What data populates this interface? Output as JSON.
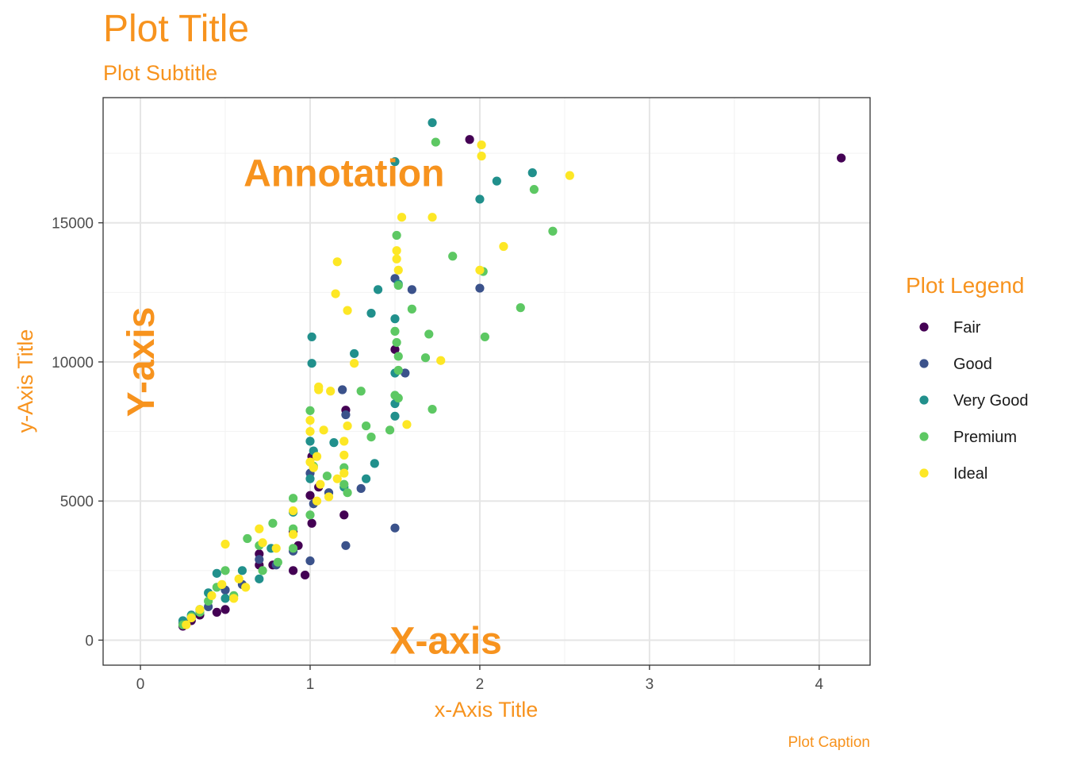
{
  "colors": {
    "accent": "#F7931E",
    "panel_border": "#333333",
    "grid_major": "#e5e5e5",
    "grid_minor": "#f2f2f2",
    "tick_text": "#4d4d4d",
    "legend_text": "#1a1a1a"
  },
  "chart_data": {
    "type": "scatter",
    "title": "Plot Title",
    "subtitle": "Plot Subtitle",
    "xlabel": "x-Axis Title",
    "ylabel": "y-Axis Title",
    "caption": "Plot Caption",
    "xlim": [
      -0.22,
      4.3
    ],
    "ylim": [
      -900,
      19500
    ],
    "x_ticks": [
      0,
      1,
      2,
      3,
      4
    ],
    "y_ticks": [
      0,
      5000,
      10000,
      15000
    ],
    "x_tick_labels": [
      "0",
      "1",
      "2",
      "3",
      "4"
    ],
    "y_tick_labels": [
      "0",
      "5000",
      "10000",
      "15000"
    ],
    "grid": true,
    "legend_title": "Plot Legend",
    "legend_position": "right",
    "annotations": [
      {
        "text": "Annotation",
        "x": 1.2,
        "y": 16800
      },
      {
        "text": "X-axis",
        "x": 1.8,
        "y": 0
      },
      {
        "text": "Y-axis",
        "x": 0,
        "y": 10000,
        "rotated": true
      }
    ],
    "series": [
      {
        "name": "Fair",
        "color": "#440154",
        "points": [
          [
            1.94,
            17995
          ],
          [
            4.13,
            17329
          ],
          [
            1.5,
            10447
          ],
          [
            1.21,
            8268
          ],
          [
            1.01,
            6600
          ],
          [
            1.0,
            5200
          ],
          [
            0.9,
            3900
          ],
          [
            0.93,
            3400
          ],
          [
            0.9,
            2500
          ],
          [
            0.97,
            2340
          ],
          [
            0.7,
            2700
          ],
          [
            0.78,
            2700
          ],
          [
            1.01,
            4200
          ],
          [
            1.2,
            4500
          ],
          [
            0.5,
            1100
          ],
          [
            0.3,
            700
          ],
          [
            0.35,
            900
          ],
          [
            0.45,
            1000
          ],
          [
            0.25,
            500
          ],
          [
            0.7,
            3100
          ],
          [
            1.05,
            5500
          ]
        ]
      },
      {
        "name": "Good",
        "color": "#3B528B",
        "points": [
          [
            1.19,
            9000
          ],
          [
            1.21,
            8100
          ],
          [
            1.56,
            9600
          ],
          [
            2.0,
            12650
          ],
          [
            1.6,
            12600
          ],
          [
            1.5,
            13000
          ],
          [
            1.21,
            3400
          ],
          [
            1.5,
            4030
          ],
          [
            1.0,
            2850
          ],
          [
            0.7,
            2900
          ],
          [
            0.8,
            2700
          ],
          [
            1.02,
            4900
          ],
          [
            1.11,
            5300
          ],
          [
            1.3,
            5450
          ],
          [
            0.9,
            3200
          ],
          [
            0.3,
            800
          ],
          [
            0.4,
            1200
          ],
          [
            0.5,
            1800
          ],
          [
            0.25,
            600
          ],
          [
            0.6,
            2000
          ],
          [
            1.0,
            6000
          ]
        ]
      },
      {
        "name": "Very Good",
        "color": "#21908C",
        "points": [
          [
            1.72,
            18600
          ],
          [
            2.31,
            16800
          ],
          [
            2.1,
            16500
          ],
          [
            1.5,
            17200
          ],
          [
            2.0,
            15850
          ],
          [
            1.4,
            12600
          ],
          [
            1.52,
            12800
          ],
          [
            1.36,
            11750
          ],
          [
            1.5,
            11550
          ],
          [
            1.01,
            10900
          ],
          [
            1.01,
            9950
          ],
          [
            1.26,
            10300
          ],
          [
            1.5,
            9600
          ],
          [
            1.5,
            8500
          ],
          [
            1.5,
            8050
          ],
          [
            1.0,
            7150
          ],
          [
            1.14,
            7100
          ],
          [
            1.38,
            6350
          ],
          [
            1.33,
            5800
          ],
          [
            1.0,
            5800
          ],
          [
            0.9,
            4600
          ],
          [
            0.77,
            3300
          ],
          [
            0.6,
            2500
          ],
          [
            0.4,
            1700
          ],
          [
            0.3,
            900
          ],
          [
            0.25,
            700
          ],
          [
            0.5,
            1500
          ],
          [
            0.7,
            2200
          ],
          [
            1.02,
            6800
          ],
          [
            1.2,
            5500
          ],
          [
            0.45,
            2400
          ],
          [
            0.35,
            1100
          ]
        ]
      },
      {
        "name": "Premium",
        "color": "#5DC863",
        "points": [
          [
            1.74,
            17900
          ],
          [
            2.32,
            16200
          ],
          [
            2.43,
            14700
          ],
          [
            1.51,
            14550
          ],
          [
            1.84,
            13800
          ],
          [
            2.02,
            13250
          ],
          [
            1.52,
            12750
          ],
          [
            2.24,
            11950
          ],
          [
            1.6,
            11900
          ],
          [
            1.5,
            11100
          ],
          [
            1.7,
            11000
          ],
          [
            2.03,
            10900
          ],
          [
            1.51,
            10700
          ],
          [
            1.52,
            10200
          ],
          [
            1.68,
            10150
          ],
          [
            1.52,
            9700
          ],
          [
            1.3,
            8950
          ],
          [
            1.5,
            8800
          ],
          [
            1.52,
            8700
          ],
          [
            1.72,
            8300
          ],
          [
            1.33,
            7700
          ],
          [
            1.47,
            7550
          ],
          [
            1.36,
            7300
          ],
          [
            1.0,
            8250
          ],
          [
            1.02,
            6250
          ],
          [
            1.2,
            6200
          ],
          [
            1.2,
            5600
          ],
          [
            1.22,
            5300
          ],
          [
            0.9,
            5100
          ],
          [
            1.0,
            4500
          ],
          [
            0.9,
            4000
          ],
          [
            0.78,
            4200
          ],
          [
            0.9,
            3300
          ],
          [
            0.63,
            3650
          ],
          [
            0.7,
            3400
          ],
          [
            0.5,
            2500
          ],
          [
            0.45,
            1900
          ],
          [
            0.35,
            1000
          ],
          [
            0.3,
            850
          ],
          [
            0.4,
            1400
          ],
          [
            0.55,
            1600
          ],
          [
            0.72,
            2500
          ],
          [
            0.81,
            2800
          ],
          [
            1.1,
            5900
          ],
          [
            0.25,
            550
          ]
        ]
      },
      {
        "name": "Ideal",
        "color": "#FDE725",
        "points": [
          [
            2.01,
            17800
          ],
          [
            2.01,
            17400
          ],
          [
            2.53,
            16700
          ],
          [
            1.54,
            15200
          ],
          [
            1.72,
            15200
          ],
          [
            2.14,
            14150
          ],
          [
            1.51,
            14000
          ],
          [
            1.51,
            13700
          ],
          [
            1.16,
            13600
          ],
          [
            2.0,
            13300
          ],
          [
            1.52,
            13300
          ],
          [
            1.15,
            12450
          ],
          [
            1.22,
            11850
          ],
          [
            1.26,
            9950
          ],
          [
            1.77,
            10050
          ],
          [
            1.05,
            9100
          ],
          [
            1.05,
            9000
          ],
          [
            1.12,
            8950
          ],
          [
            1.57,
            7750
          ],
          [
            1.0,
            7900
          ],
          [
            1.2,
            7150
          ],
          [
            1.0,
            7500
          ],
          [
            1.08,
            7550
          ],
          [
            1.2,
            6650
          ],
          [
            1.04,
            6600
          ],
          [
            1.0,
            6400
          ],
          [
            1.02,
            6200
          ],
          [
            1.2,
            6000
          ],
          [
            1.16,
            5800
          ],
          [
            1.11,
            5150
          ],
          [
            1.04,
            5000
          ],
          [
            0.9,
            4650
          ],
          [
            0.7,
            4000
          ],
          [
            0.5,
            3450
          ],
          [
            0.72,
            3500
          ],
          [
            0.8,
            3300
          ],
          [
            0.58,
            2200
          ],
          [
            0.48,
            2000
          ],
          [
            0.42,
            1600
          ],
          [
            0.35,
            1100
          ],
          [
            0.3,
            800
          ],
          [
            0.55,
            1500
          ],
          [
            0.62,
            1900
          ],
          [
            1.06,
            5600
          ],
          [
            0.27,
            550
          ],
          [
            0.9,
            3800
          ],
          [
            1.22,
            7700
          ]
        ]
      }
    ]
  }
}
